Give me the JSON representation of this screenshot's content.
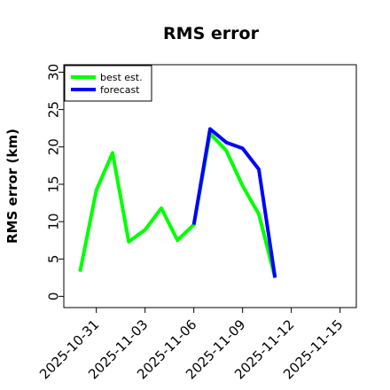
{
  "chart_data": {
    "type": "line",
    "title": "RMS error",
    "ylabel": "RMS error (km)",
    "xlabel": "",
    "ylim": [
      -1.5,
      31
    ],
    "xlim": [
      "2025-10-29",
      "2025-11-16"
    ],
    "yticks": [
      0,
      5,
      10,
      15,
      20,
      25,
      30
    ],
    "xticks": [
      {
        "date": "2025-10-31",
        "label": "2025-10-31",
        "color": "#000000"
      },
      {
        "date": "2025-11-03",
        "label": "2025-11-03",
        "color": "#000000"
      },
      {
        "date": "2025-11-06",
        "label": "2025-11-06",
        "color": "#228b22"
      },
      {
        "date": "2025-11-09",
        "label": "2025-11-09",
        "color": "#000000"
      },
      {
        "date": "2025-11-12",
        "label": "2025-11-12",
        "color": "#000000"
      },
      {
        "date": "2025-11-15",
        "label": "2025-11-15",
        "color": "#000000"
      }
    ],
    "legend_position": "top-left",
    "series": [
      {
        "name": "best est.",
        "color": "#00ff00",
        "x": [
          "2025-10-30",
          "2025-10-31",
          "2025-11-01",
          "2025-11-02",
          "2025-11-03",
          "2025-11-04",
          "2025-11-05",
          "2025-11-06",
          "2025-11-07",
          "2025-11-08",
          "2025-11-09",
          "2025-11-10",
          "2025-11-11"
        ],
        "y": [
          3.3,
          14.2,
          19.2,
          7.3,
          8.9,
          11.8,
          7.5,
          9.6,
          21.8,
          19.5,
          14.8,
          11.0,
          2.5
        ]
      },
      {
        "name": "forecast",
        "color": "#0000ff",
        "x": [
          "2025-11-06",
          "2025-11-07",
          "2025-11-08",
          "2025-11-09",
          "2025-11-10",
          "2025-11-11"
        ],
        "y": [
          9.6,
          22.4,
          20.6,
          19.8,
          17.0,
          2.5
        ]
      }
    ]
  }
}
